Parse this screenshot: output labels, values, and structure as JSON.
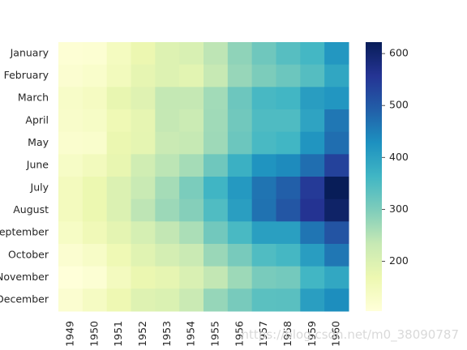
{
  "chart_data": {
    "type": "heatmap",
    "title": "",
    "xlabel": "",
    "ylabel": "",
    "x": [
      "1949",
      "1950",
      "1951",
      "1952",
      "1953",
      "1954",
      "1955",
      "1956",
      "1957",
      "1958",
      "1959",
      "1960"
    ],
    "y": [
      "January",
      "February",
      "March",
      "April",
      "May",
      "June",
      "July",
      "August",
      "September",
      "October",
      "November",
      "December"
    ],
    "values": [
      [
        112,
        115,
        145,
        171,
        196,
        204,
        242,
        284,
        315,
        340,
        360,
        417
      ],
      [
        118,
        126,
        150,
        180,
        196,
        188,
        233,
        277,
        301,
        318,
        342,
        391
      ],
      [
        132,
        141,
        178,
        193,
        236,
        235,
        267,
        317,
        356,
        362,
        406,
        419
      ],
      [
        129,
        135,
        163,
        181,
        235,
        227,
        269,
        313,
        348,
        348,
        396,
        461
      ],
      [
        121,
        125,
        172,
        183,
        229,
        234,
        270,
        318,
        355,
        363,
        420,
        472
      ],
      [
        135,
        149,
        178,
        218,
        243,
        264,
        315,
        374,
        422,
        435,
        472,
        535
      ],
      [
        148,
        170,
        199,
        230,
        264,
        302,
        364,
        413,
        465,
        491,
        548,
        622
      ],
      [
        148,
        170,
        199,
        242,
        272,
        293,
        347,
        405,
        467,
        505,
        559,
        606
      ],
      [
        136,
        158,
        184,
        209,
        237,
        259,
        312,
        355,
        404,
        404,
        463,
        508
      ],
      [
        119,
        133,
        162,
        191,
        211,
        229,
        274,
        306,
        347,
        359,
        407,
        461
      ],
      [
        104,
        114,
        146,
        172,
        180,
        203,
        237,
        271,
        305,
        310,
        362,
        390
      ],
      [
        118,
        140,
        166,
        194,
        201,
        229,
        278,
        306,
        336,
        337,
        405,
        432
      ]
    ],
    "colormap": "YlGnBu",
    "vmin": 104,
    "vmax": 622,
    "colorbar_ticks": [
      200,
      300,
      400,
      500,
      600
    ],
    "grid": false
  },
  "watermark": "https://blog.csdn.net/m0_38090787"
}
